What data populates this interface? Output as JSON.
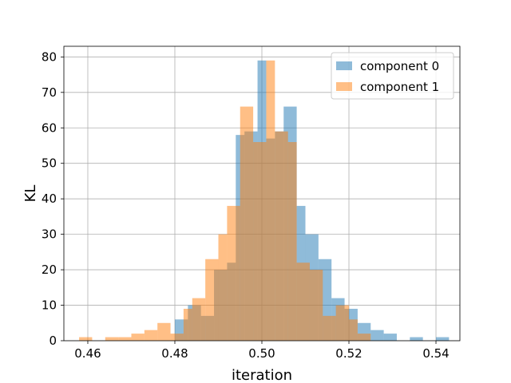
{
  "chart_data": {
    "type": "histogram",
    "title": "",
    "xlabel": "iteration",
    "ylabel": "KL",
    "xlim": [
      0.4545,
      0.5455
    ],
    "ylim": [
      0,
      83
    ],
    "xticks": [
      0.46,
      0.48,
      0.5,
      0.52,
      0.54
    ],
    "xtick_labels": [
      "0.46",
      "0.48",
      "0.50",
      "0.52",
      "0.54"
    ],
    "yticks": [
      0,
      10,
      20,
      30,
      40,
      50,
      60,
      70,
      80
    ],
    "ytick_labels": [
      "0",
      "10",
      "20",
      "30",
      "40",
      "50",
      "60",
      "70",
      "80"
    ],
    "grid": true,
    "legend_position": "top-right",
    "series": [
      {
        "name": "component 0",
        "color": "#1f77b4",
        "opacity": 0.5,
        "bins": [
          [
            0.48,
            0.483,
            6
          ],
          [
            0.483,
            0.486,
            10
          ],
          [
            0.486,
            0.489,
            7
          ],
          [
            0.489,
            0.492,
            20
          ],
          [
            0.492,
            0.494,
            22
          ],
          [
            0.494,
            0.496,
            58
          ],
          [
            0.496,
            0.499,
            59
          ],
          [
            0.499,
            0.501,
            79
          ],
          [
            0.501,
            0.503,
            57
          ],
          [
            0.503,
            0.505,
            59
          ],
          [
            0.505,
            0.508,
            66
          ],
          [
            0.508,
            0.51,
            38
          ],
          [
            0.51,
            0.513,
            30
          ],
          [
            0.513,
            0.516,
            23
          ],
          [
            0.516,
            0.519,
            12
          ],
          [
            0.519,
            0.522,
            9
          ],
          [
            0.522,
            0.525,
            5
          ],
          [
            0.525,
            0.528,
            3
          ],
          [
            0.528,
            0.531,
            2
          ],
          [
            0.531,
            0.534,
            0
          ],
          [
            0.534,
            0.537,
            1
          ],
          [
            0.537,
            0.54,
            0
          ],
          [
            0.54,
            0.543,
            1
          ]
        ]
      },
      {
        "name": "component 1",
        "color": "#ff7f0e",
        "opacity": 0.5,
        "bins": [
          [
            0.458,
            0.461,
            1
          ],
          [
            0.461,
            0.464,
            0
          ],
          [
            0.464,
            0.467,
            1
          ],
          [
            0.467,
            0.47,
            1
          ],
          [
            0.47,
            0.473,
            2
          ],
          [
            0.473,
            0.476,
            3
          ],
          [
            0.476,
            0.479,
            5
          ],
          [
            0.479,
            0.482,
            2
          ],
          [
            0.482,
            0.484,
            9
          ],
          [
            0.484,
            0.487,
            12
          ],
          [
            0.487,
            0.49,
            23
          ],
          [
            0.49,
            0.492,
            30
          ],
          [
            0.492,
            0.495,
            38
          ],
          [
            0.495,
            0.498,
            66
          ],
          [
            0.498,
            0.501,
            56
          ],
          [
            0.501,
            0.503,
            79
          ],
          [
            0.503,
            0.506,
            59
          ],
          [
            0.506,
            0.508,
            56
          ],
          [
            0.508,
            0.511,
            22
          ],
          [
            0.511,
            0.514,
            20
          ],
          [
            0.514,
            0.517,
            7
          ],
          [
            0.517,
            0.52,
            10
          ],
          [
            0.52,
            0.522,
            6
          ],
          [
            0.522,
            0.525,
            2
          ]
        ]
      }
    ]
  }
}
